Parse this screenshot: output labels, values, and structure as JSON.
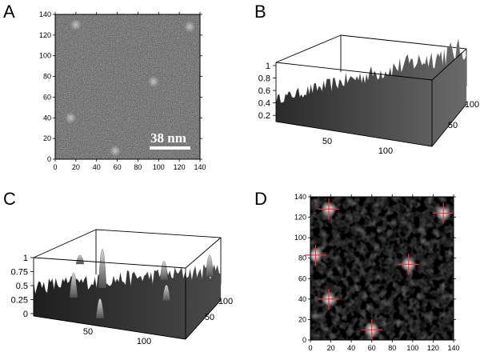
{
  "panels": {
    "a": {
      "letter": "A",
      "x_ticks": [
        "0",
        "20",
        "40",
        "60",
        "80",
        "100",
        "120",
        "140"
      ],
      "y_ticks": [
        "0",
        "20",
        "40",
        "60",
        "80",
        "100",
        "120",
        "140"
      ],
      "scale_bar_label": "38 nm",
      "bright_spots": [
        [
          15,
          40
        ],
        [
          58,
          8
        ],
        [
          95,
          75
        ],
        [
          130,
          128
        ],
        [
          20,
          130
        ]
      ]
    },
    "b": {
      "letter": "B",
      "z_ticks": [
        "0.2",
        "0.4",
        "0.6",
        "0.8",
        "1"
      ],
      "x_ticks": [
        "50",
        "100"
      ],
      "y_ticks": [
        "50",
        "100"
      ]
    },
    "c": {
      "letter": "C",
      "z_ticks": [
        "0",
        "0.25",
        "0.5",
        "0.75",
        "1"
      ],
      "x_ticks": [
        "50",
        "100"
      ],
      "y_ticks": [
        "50",
        "100"
      ]
    },
    "d": {
      "letter": "D",
      "x_ticks": [
        "0",
        "20",
        "40",
        "60",
        "80",
        "100",
        "120",
        "140"
      ],
      "y_ticks": [
        "0",
        "20",
        "40",
        "60",
        "80",
        "100",
        "120",
        "140"
      ],
      "marker_color": "#ff2a2a",
      "peaks": [
        [
          18,
          128
        ],
        [
          5,
          83
        ],
        [
          18,
          40
        ],
        [
          60,
          10
        ],
        [
          96,
          74
        ],
        [
          130,
          124
        ]
      ]
    }
  }
}
